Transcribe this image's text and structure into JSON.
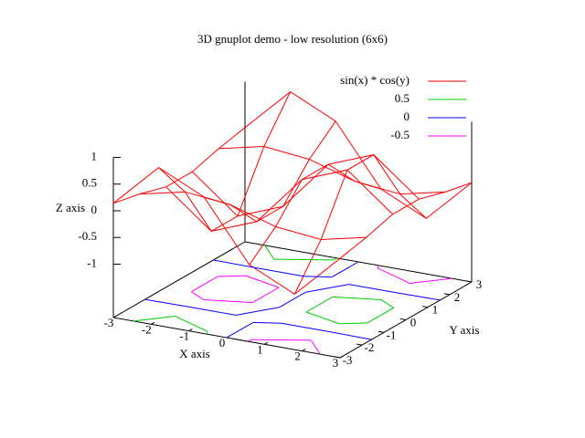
{
  "chart_data": {
    "type": "surface3d",
    "title": "3D gnuplot demo - low resolution (6x6)",
    "xlabel": "X axis",
    "ylabel": "Y axis",
    "zlabel": "Z axis",
    "x": [
      -3,
      -1.8,
      -0.6,
      0.6,
      1.8,
      3
    ],
    "y": [
      -3,
      -1.8,
      -0.6,
      0.6,
      1.8,
      3
    ],
    "z": [
      [
        0.14,
        0.96,
        0.56,
        -0.56,
        -0.96,
        -0.14
      ],
      [
        0.03,
        0.22,
        0.13,
        -0.13,
        -0.22,
        -0.03
      ],
      [
        -0.12,
        -0.8,
        -0.47,
        0.47,
        0.8,
        0.12
      ],
      [
        -0.12,
        -0.8,
        -0.47,
        0.47,
        0.8,
        0.12
      ],
      [
        0.03,
        0.22,
        0.13,
        -0.13,
        -0.22,
        -0.03
      ],
      [
        0.14,
        0.96,
        0.56,
        -0.56,
        -0.96,
        -0.14
      ]
    ],
    "surface": {
      "name": "sin(x) * cos(y)",
      "color": "#ff0000"
    },
    "contours": [
      {
        "level": 0.5,
        "color": "#00cc00"
      },
      {
        "level": 0,
        "color": "#0000ff"
      },
      {
        "level": -0.5,
        "color": "#ff00ff"
      }
    ],
    "xlim": [
      -3,
      3
    ],
    "ylim": [
      -3,
      3
    ],
    "zlim": [
      -1,
      1
    ],
    "xticks": [
      -3,
      -2,
      -1,
      0,
      1,
      2,
      3
    ],
    "yticks": [
      -3,
      -2,
      -1,
      0,
      1,
      2,
      3
    ],
    "zticks": [
      -1,
      -0.5,
      0,
      0.5,
      1
    ]
  }
}
